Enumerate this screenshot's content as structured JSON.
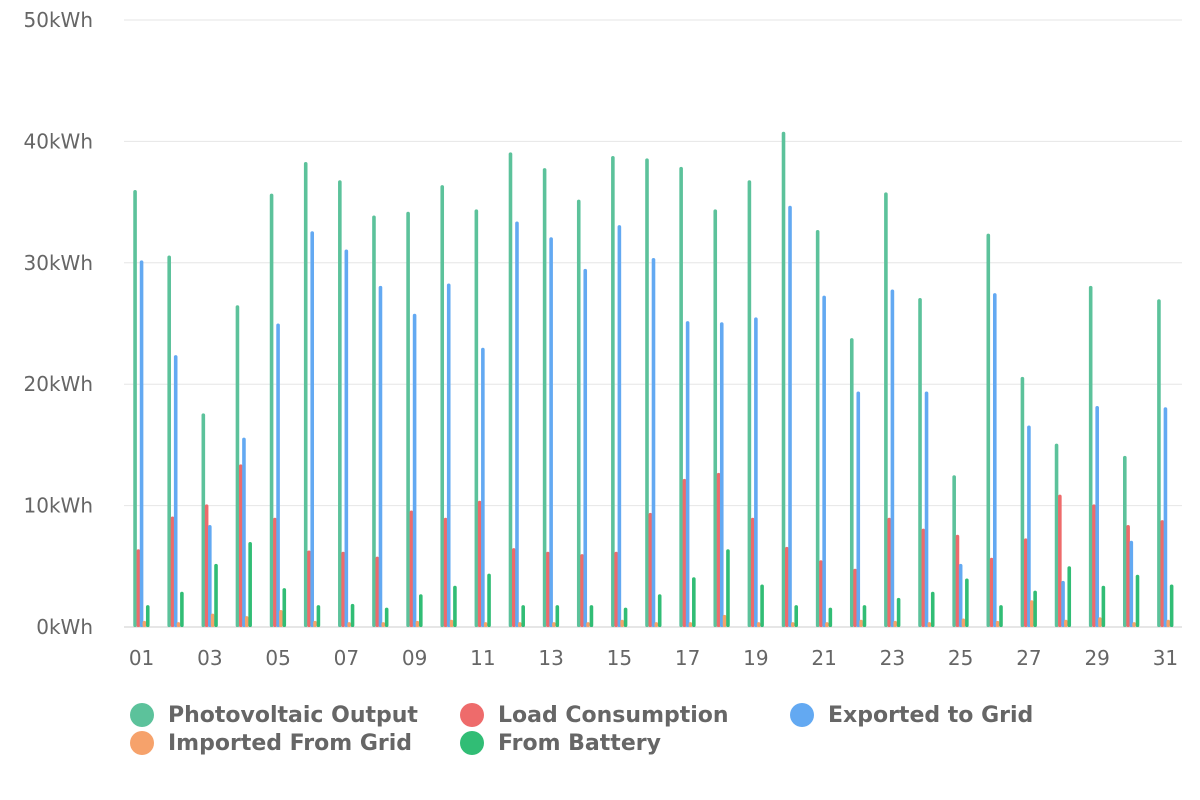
{
  "chart_data": {
    "type": "bar",
    "y_axis": {
      "min": 0,
      "max": 50,
      "ticks": [
        0,
        10,
        20,
        30,
        40,
        50
      ],
      "tick_labels": [
        "0kWh",
        "10kWh",
        "20kWh",
        "30kWh",
        "40kWh",
        "50kWh"
      ],
      "unit": "kWh"
    },
    "grid": true,
    "legend_position": "bottom",
    "categories": [
      "01",
      "02",
      "03",
      "04",
      "05",
      "06",
      "07",
      "08",
      "09",
      "10",
      "11",
      "12",
      "13",
      "14",
      "15",
      "16",
      "17",
      "18",
      "19",
      "20",
      "21",
      "22",
      "23",
      "24",
      "25",
      "26",
      "27",
      "28",
      "29",
      "30",
      "31"
    ],
    "x_tick_labels": [
      "01",
      "03",
      "05",
      "07",
      "09",
      "11",
      "13",
      "15",
      "17",
      "19",
      "21",
      "23",
      "25",
      "27",
      "29",
      "31"
    ],
    "series": [
      {
        "name": "Photovoltaic Output",
        "color": "#5cc29b",
        "values": [
          36.0,
          30.6,
          17.6,
          26.5,
          35.7,
          38.3,
          36.8,
          33.9,
          34.2,
          36.4,
          34.4,
          39.1,
          37.8,
          35.2,
          38.8,
          38.6,
          37.9,
          34.4,
          36.8,
          40.8,
          32.7,
          23.8,
          35.8,
          27.1,
          12.5,
          32.4,
          20.6,
          15.1,
          28.1,
          14.1,
          27.0
        ]
      },
      {
        "name": "Load Consumption",
        "color": "#ee6b6b",
        "values": [
          6.4,
          9.1,
          10.1,
          13.4,
          9.0,
          6.3,
          6.2,
          5.8,
          9.6,
          9.0,
          10.4,
          6.5,
          6.2,
          6.0,
          6.2,
          9.4,
          12.2,
          12.7,
          9.0,
          6.6,
          5.5,
          4.8,
          9.0,
          8.1,
          7.6,
          5.7,
          7.3,
          10.9,
          10.1,
          8.4,
          8.8
        ]
      },
      {
        "name": "Exported to Grid",
        "color": "#63a9f2",
        "values": [
          30.2,
          22.4,
          8.4,
          15.6,
          25.0,
          32.6,
          31.1,
          28.1,
          25.8,
          28.3,
          23.0,
          33.4,
          32.1,
          29.5,
          33.1,
          30.4,
          25.2,
          25.1,
          25.5,
          34.7,
          27.3,
          19.4,
          27.8,
          19.4,
          5.2,
          27.5,
          16.6,
          3.8,
          18.2,
          7.1,
          18.1
        ]
      },
      {
        "name": "Imported From Grid",
        "color": "#f6a26b",
        "values": [
          0.5,
          0.4,
          1.1,
          0.9,
          1.4,
          0.5,
          0.4,
          0.4,
          0.5,
          0.6,
          0.4,
          0.4,
          0.4,
          0.4,
          0.6,
          0.4,
          0.4,
          1.0,
          0.4,
          0.4,
          0.4,
          0.6,
          0.5,
          0.4,
          0.7,
          0.5,
          2.2,
          0.6,
          0.8,
          0.4,
          0.6
        ]
      },
      {
        "name": "From Battery",
        "color": "#31bd75",
        "values": [
          1.8,
          2.9,
          5.2,
          7.0,
          3.2,
          1.8,
          1.9,
          1.6,
          2.7,
          3.4,
          4.4,
          1.8,
          1.8,
          1.8,
          1.6,
          2.7,
          4.1,
          6.4,
          3.5,
          1.8,
          1.6,
          1.8,
          2.4,
          2.9,
          4.0,
          1.8,
          3.0,
          5.0,
          3.4,
          4.3,
          3.5
        ]
      }
    ]
  }
}
